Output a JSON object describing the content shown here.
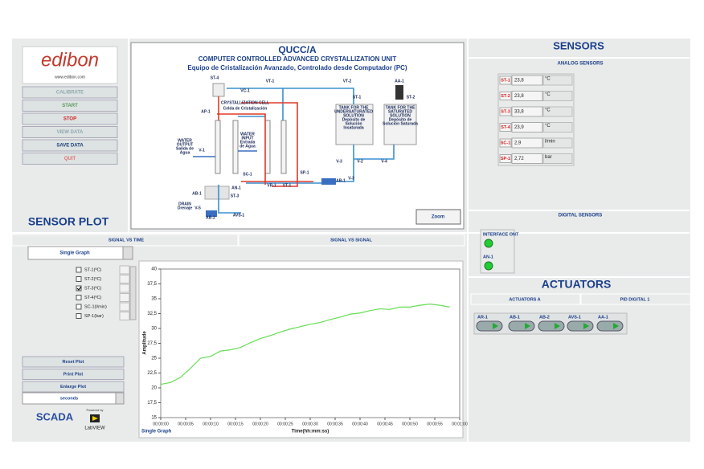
{
  "header": {
    "logo": "edibon",
    "website": "www.edibon.com"
  },
  "buttons": [
    "CALIBRATE",
    "START",
    "STOP",
    "VIEW DATA",
    "SAVE DATA",
    "QUIT"
  ],
  "sensor_plot_title": "SENSOR PLOT",
  "diagram": {
    "title": "QUCC/A",
    "subtitle": "COMPUTER CONTROLLED ADVANCED CRYSTALLIZATION UNIT",
    "subtitle_es": "Equipo de Cristalización Avanzado, Controlado desde Computador (PC)",
    "labels": [
      "ST-4",
      "VC-1",
      "VT-1",
      "VT-2",
      "AA-1",
      "ST-1",
      "ST-2",
      "AP-1",
      "CRYSTALLIZATION CELL",
      "Celda de Cristalización",
      "TANK FOR THE",
      "UNDERSATURATED",
      "SOLUTION",
      "Depósito de",
      "Solución",
      "Insaturada",
      "TANK FOR THE",
      "SATURATED",
      "SOLUTION",
      "Depósito de",
      "Solución Saturada",
      "WATER",
      "OUTPUT",
      "Salida de",
      "Agua",
      "V-1",
      "WATER",
      "INPUT",
      "Entrada",
      "de Agua",
      "V-3",
      "V-2",
      "V-4",
      "SC-1",
      "SP-1",
      "AN-1",
      "ST-3",
      "VR-1",
      "VT-1",
      "AB-1",
      "V-3",
      "AB-1",
      "DRAIN",
      "Drenaje",
      "V-5",
      "AB-2",
      "AVS-1"
    ],
    "zoom": "Zoom"
  },
  "sensors": {
    "title": "SENSORS",
    "analog_title": "ANALOG SENSORS",
    "analog": [
      {
        "name": "ST-1",
        "value": "23,8",
        "unit": "°C"
      },
      {
        "name": "ST-2",
        "value": "23,8",
        "unit": "°C"
      },
      {
        "name": "ST-3",
        "value": "33,8",
        "unit": "°C"
      },
      {
        "name": "ST-4",
        "value": "23,9",
        "unit": "°C"
      },
      {
        "name": "SC-1",
        "value": "2,9",
        "unit": "l/min"
      },
      {
        "name": "SP-1",
        "value": "2,72",
        "unit": "bar"
      }
    ],
    "digital_title": "DIGITAL SENSORS",
    "digital": [
      "INTERFACE ONT",
      "AN-1"
    ]
  },
  "actuators": {
    "title": "ACTUATORS",
    "tabs": [
      "ACTUATORS A",
      "PID DIGITAL 1"
    ],
    "buttons": [
      "AR-1",
      "AB-1",
      "AB-2",
      "AVS-1",
      "AA-1"
    ]
  },
  "plot_panel": {
    "tabs": [
      "SIGNAL VS TIME",
      "SIGNAL VS SIGNAL"
    ],
    "mode": "Single Graph",
    "channels": [
      {
        "label": "ST-1(ºC)",
        "checked": false
      },
      {
        "label": "ST-2(ºC)",
        "checked": false
      },
      {
        "label": "ST-3(ºC)",
        "checked": true
      },
      {
        "label": "ST-4(ºC)",
        "checked": false
      },
      {
        "label": "SC-1(l/min)",
        "checked": false
      },
      {
        "label": "SP-1(bar)",
        "checked": false
      }
    ],
    "buttons": [
      "Reset Plot",
      "Print Plot",
      "Enlarge Plot"
    ],
    "time_unit": "seconds",
    "scada": "SCADA",
    "powered_by": "Powered by",
    "labview": "LabVIEW"
  },
  "chart_data": {
    "type": "line",
    "xlabel": "Time(hh:mm:ss)",
    "ylabel": "Amplitude",
    "plot_name": "Single Graph",
    "color": "#66dd55",
    "grid": false,
    "x": [
      0,
      2,
      4,
      6,
      8,
      10,
      12,
      14,
      16,
      18,
      20,
      22,
      24,
      26,
      28,
      30,
      32,
      34,
      36,
      38,
      40,
      42,
      44,
      46,
      48,
      50,
      52,
      54,
      56,
      58
    ],
    "values": [
      20.6,
      20.9,
      21.8,
      23.3,
      25.0,
      25.3,
      26.2,
      26.4,
      26.8,
      27.6,
      28.3,
      28.8,
      29.4,
      29.9,
      30.3,
      30.7,
      31.0,
      31.5,
      31.9,
      32.4,
      32.6,
      33.0,
      33.3,
      33.2,
      33.6,
      33.6,
      33.9,
      34.1,
      33.9,
      33.6
    ],
    "xlim": [
      0,
      60
    ],
    "ylim": [
      15,
      40
    ],
    "xticks": [
      {
        "value": 0,
        "label": "00:00:00"
      },
      {
        "value": 5,
        "label": "00:00:05"
      },
      {
        "value": 10,
        "label": "00:00:10"
      },
      {
        "value": 15,
        "label": "00:00:15"
      },
      {
        "value": 20,
        "label": "00:00:20"
      },
      {
        "value": 25,
        "label": "00:00:25"
      },
      {
        "value": 30,
        "label": "00:00:30"
      },
      {
        "value": 35,
        "label": "00:00:35"
      },
      {
        "value": 40,
        "label": "00:00:40"
      },
      {
        "value": 45,
        "label": "00:00:45"
      },
      {
        "value": 50,
        "label": "00:00:50"
      },
      {
        "value": 55,
        "label": "00:00:55"
      },
      {
        "value": 60,
        "label": "00:01:00"
      }
    ],
    "yticks": [
      15,
      {
        "value": 17.5,
        "label": "17,5"
      },
      20,
      {
        "value": 22.5,
        "label": "22,5"
      },
      25,
      {
        "value": 27.5,
        "label": "27,5"
      },
      30,
      {
        "value": 32.5,
        "label": "32,5"
      },
      35,
      {
        "value": 37.5,
        "label": "37,5"
      },
      40
    ]
  }
}
